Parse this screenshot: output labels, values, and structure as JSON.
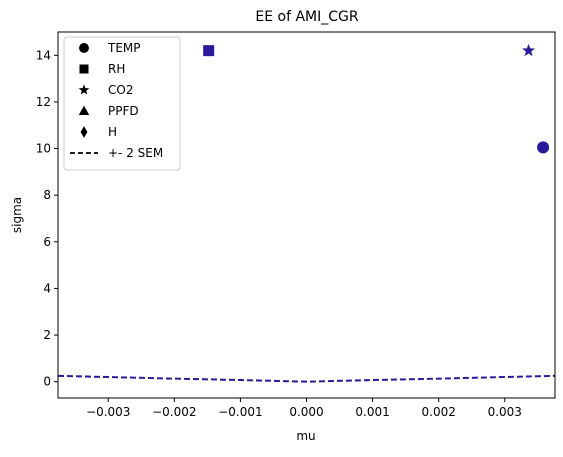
{
  "chart_data": {
    "type": "scatter",
    "title": "EE of AMI_CGR",
    "xlabel": "mu",
    "ylabel": "sigma",
    "xlim": [
      -0.00376,
      0.00376
    ],
    "ylim": [
      -0.7,
      15.0
    ],
    "xticks": [
      -0.003,
      -0.002,
      -0.001,
      0.0,
      0.001,
      0.002,
      0.003
    ],
    "xtick_labels": [
      "−0.003",
      "−0.002",
      "−0.001",
      "0.000",
      "0.001",
      "0.002",
      "0.003"
    ],
    "yticks": [
      0,
      2,
      4,
      6,
      8,
      10,
      12,
      14
    ],
    "ytick_labels": [
      "0",
      "2",
      "4",
      "6",
      "8",
      "10",
      "12",
      "14"
    ],
    "grid": false,
    "legend_position": "top-left",
    "marker_color": "#2a1a9b",
    "points": [
      {
        "name": "TEMP",
        "marker": "circle",
        "x": 0.00358,
        "y": 10.05
      },
      {
        "name": "RH",
        "marker": "square",
        "x": -0.00148,
        "y": 14.2
      },
      {
        "name": "CO2",
        "marker": "star",
        "x": 0.00336,
        "y": 14.2
      }
    ],
    "sem_line": {
      "name": "+- 2 SEM",
      "color": "#2a1a9b",
      "x": [
        -0.00376,
        -0.003,
        -0.002,
        -0.001,
        0.0,
        0.001,
        0.002,
        0.003,
        0.00376
      ],
      "y": [
        0.25,
        0.2,
        0.13,
        0.07,
        0.0,
        0.07,
        0.13,
        0.2,
        0.25
      ]
    },
    "legend": [
      {
        "label": "TEMP",
        "marker": "circle"
      },
      {
        "label": "RH",
        "marker": "square"
      },
      {
        "label": "CO2",
        "marker": "star"
      },
      {
        "label": "PPFD",
        "marker": "triangle"
      },
      {
        "label": "H",
        "marker": "diamond"
      },
      {
        "label": "+- 2 SEM",
        "marker": "dashed-line"
      }
    ]
  }
}
